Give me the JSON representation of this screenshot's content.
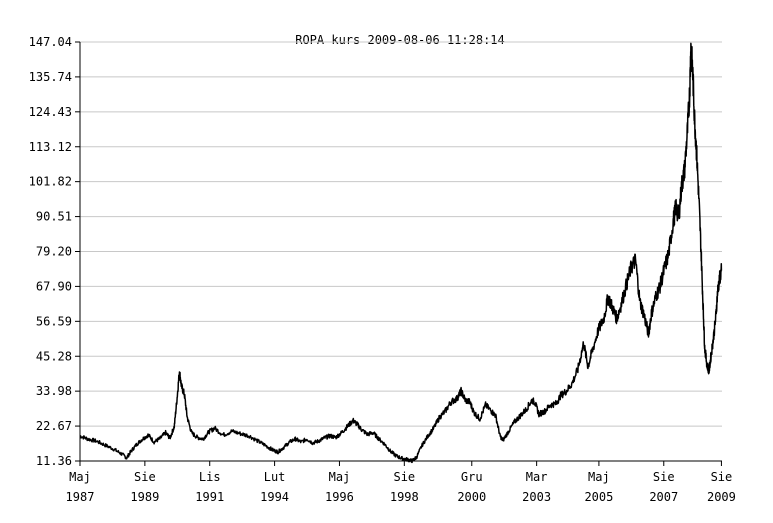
{
  "chart_data": {
    "type": "line",
    "title": "ROPA kurs  2009-08-06 11:28:14",
    "xlabel": "",
    "ylabel": "",
    "grid": true,
    "ylim": [
      11.36,
      147.04
    ],
    "y_ticks": [
      "11.36",
      "22.67",
      "33.98",
      "45.28",
      "56.59",
      "67.90",
      "79.20",
      "90.51",
      "101.82",
      "113.12",
      "124.43",
      "135.74",
      "147.04"
    ],
    "x_ticks": [
      {
        "month": "Maj",
        "year": "1987",
        "t": 1987.33
      },
      {
        "month": "Sie",
        "year": "1989",
        "t": 1989.58
      },
      {
        "month": "Lis",
        "year": "1991",
        "t": 1991.83
      },
      {
        "month": "Lut",
        "year": "1994",
        "t": 1994.08
      },
      {
        "month": "Maj",
        "year": "1996",
        "t": 1996.33
      },
      {
        "month": "Sie",
        "year": "1998",
        "t": 1998.58
      },
      {
        "month": "Gru",
        "year": "2000",
        "t": 2000.92
      },
      {
        "month": "Mar",
        "year": "2003",
        "t": 2003.17
      },
      {
        "month": "Maj",
        "year": "2005",
        "t": 2005.33
      },
      {
        "month": "Sie",
        "year": "2007",
        "t": 2007.58
      },
      {
        "month": "Sie",
        "year": "2009",
        "t": 2009.58
      }
    ],
    "xlim": [
      1987.33,
      2009.6
    ],
    "series": [
      {
        "color": "#000000",
        "points": [
          [
            1987.33,
            19.5
          ],
          [
            1987.6,
            18.5
          ],
          [
            1987.9,
            17.8
          ],
          [
            1988.2,
            16.5
          ],
          [
            1988.5,
            15.2
          ],
          [
            1988.75,
            13.8
          ],
          [
            1988.95,
            12.4
          ],
          [
            1989.1,
            14.5
          ],
          [
            1989.3,
            16.8
          ],
          [
            1989.5,
            18.5
          ],
          [
            1989.7,
            19.8
          ],
          [
            1989.9,
            17.5
          ],
          [
            1990.1,
            18.6
          ],
          [
            1990.3,
            20.5
          ],
          [
            1990.45,
            18.8
          ],
          [
            1990.6,
            22.5
          ],
          [
            1990.7,
            32.0
          ],
          [
            1990.78,
            40.5
          ],
          [
            1990.85,
            35.5
          ],
          [
            1990.95,
            33.0
          ],
          [
            1991.05,
            25.5
          ],
          [
            1991.2,
            20.5
          ],
          [
            1991.4,
            19.0
          ],
          [
            1991.6,
            18.5
          ],
          [
            1991.8,
            20.8
          ],
          [
            1992.0,
            22.0
          ],
          [
            1992.3,
            19.8
          ],
          [
            1992.6,
            21.0
          ],
          [
            1992.9,
            20.2
          ],
          [
            1993.2,
            19.5
          ],
          [
            1993.5,
            17.8
          ],
          [
            1993.75,
            16.5
          ],
          [
            1994.0,
            15.0
          ],
          [
            1994.2,
            14.3
          ],
          [
            1994.4,
            15.8
          ],
          [
            1994.6,
            17.5
          ],
          [
            1994.8,
            18.5
          ],
          [
            1995.0,
            17.5
          ],
          [
            1995.2,
            18.5
          ],
          [
            1995.4,
            17.2
          ],
          [
            1995.6,
            17.8
          ],
          [
            1995.8,
            18.8
          ],
          [
            1996.0,
            19.5
          ],
          [
            1996.2,
            19.0
          ],
          [
            1996.4,
            20.5
          ],
          [
            1996.6,
            22.5
          ],
          [
            1996.8,
            24.5
          ],
          [
            1996.95,
            23.2
          ],
          [
            1997.1,
            21.5
          ],
          [
            1997.3,
            20.0
          ],
          [
            1997.5,
            20.5
          ],
          [
            1997.7,
            18.5
          ],
          [
            1997.9,
            16.8
          ],
          [
            1998.1,
            14.5
          ],
          [
            1998.3,
            13.0
          ],
          [
            1998.5,
            12.2
          ],
          [
            1998.7,
            11.8
          ],
          [
            1998.85,
            11.4
          ],
          [
            1999.0,
            12.5
          ],
          [
            1999.2,
            16.5
          ],
          [
            1999.4,
            19.5
          ],
          [
            1999.6,
            22.0
          ],
          [
            1999.8,
            25.5
          ],
          [
            2000.0,
            27.5
          ],
          [
            2000.2,
            30.5
          ],
          [
            2000.4,
            31.5
          ],
          [
            2000.55,
            34.0
          ],
          [
            2000.7,
            31.0
          ],
          [
            2000.85,
            30.5
          ],
          [
            2001.0,
            27.0
          ],
          [
            2001.2,
            25.0
          ],
          [
            2001.4,
            29.5
          ],
          [
            2001.6,
            27.5
          ],
          [
            2001.75,
            26.0
          ],
          [
            2001.9,
            19.5
          ],
          [
            2002.0,
            18.0
          ],
          [
            2002.2,
            21.0
          ],
          [
            2002.4,
            24.0
          ],
          [
            2002.6,
            26.0
          ],
          [
            2002.8,
            28.0
          ],
          [
            2003.0,
            31.0
          ],
          [
            2003.1,
            30.5
          ],
          [
            2003.25,
            26.5
          ],
          [
            2003.45,
            27.5
          ],
          [
            2003.65,
            29.5
          ],
          [
            2003.85,
            30.0
          ],
          [
            2004.0,
            32.5
          ],
          [
            2004.2,
            34.0
          ],
          [
            2004.4,
            36.5
          ],
          [
            2004.6,
            41.0
          ],
          [
            2004.8,
            49.5
          ],
          [
            2004.95,
            42.0
          ],
          [
            2005.1,
            47.0
          ],
          [
            2005.3,
            53.5
          ],
          [
            2005.5,
            57.5
          ],
          [
            2005.65,
            64.5
          ],
          [
            2005.8,
            61.0
          ],
          [
            2005.95,
            57.5
          ],
          [
            2006.1,
            62.0
          ],
          [
            2006.3,
            69.0
          ],
          [
            2006.45,
            74.0
          ],
          [
            2006.6,
            76.5
          ],
          [
            2006.75,
            63.0
          ],
          [
            2006.9,
            58.5
          ],
          [
            2007.05,
            52.5
          ],
          [
            2007.15,
            59.0
          ],
          [
            2007.3,
            64.5
          ],
          [
            2007.45,
            68.0
          ],
          [
            2007.6,
            73.5
          ],
          [
            2007.75,
            78.5
          ],
          [
            2007.9,
            88.5
          ],
          [
            2008.0,
            93.5
          ],
          [
            2008.1,
            90.5
          ],
          [
            2008.2,
            100.5
          ],
          [
            2008.3,
            105.5
          ],
          [
            2008.4,
            118.0
          ],
          [
            2008.48,
            131.0
          ],
          [
            2008.52,
            145.5
          ],
          [
            2008.58,
            138.0
          ],
          [
            2008.65,
            122.0
          ],
          [
            2008.72,
            111.0
          ],
          [
            2008.8,
            96.0
          ],
          [
            2008.88,
            78.0
          ],
          [
            2008.95,
            60.0
          ],
          [
            2009.0,
            48.0
          ],
          [
            2009.08,
            42.5
          ],
          [
            2009.15,
            40.5
          ],
          [
            2009.22,
            45.5
          ],
          [
            2009.3,
            51.0
          ],
          [
            2009.38,
            57.5
          ],
          [
            2009.45,
            66.5
          ],
          [
            2009.52,
            70.5
          ],
          [
            2009.58,
            73.0
          ]
        ]
      }
    ]
  }
}
